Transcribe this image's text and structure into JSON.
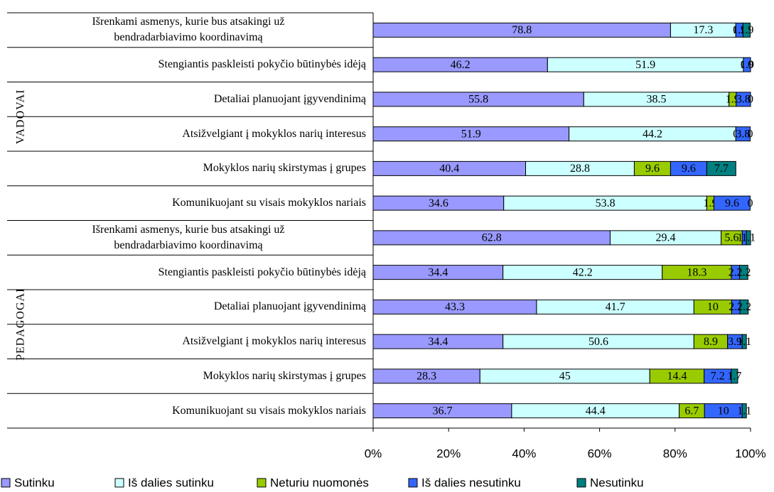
{
  "chart_data": {
    "type": "stacked_barh",
    "groups": [
      "VADOVAI",
      "PEDAGOGAI"
    ],
    "categories": [
      "Išrenkami asmenys, kurie bus atsakingi už\nbendradarbiavimo koordinavimą",
      "Stengiantis paskleisti pokyčio būtinybės idėją",
      "Detaliai planuojant įgyvendinimą",
      "Atsižvelgiant į mokyklos narių interesus",
      "Mokyklos narių skirstymas į grupes",
      "Komunikuojant su visais mokyklos nariais",
      "Išrenkami asmenys, kurie bus atsakingi už\nbendradarbiavimo koordinavimą",
      "Stengiantis paskleisti pokyčio būtinybės idėją",
      "Detaliai planuojant įgyvendinimą",
      "Atsižvelgiant į mokyklos narių interesus",
      "Mokyklos narių skirstymas į grupes",
      "Komunikuojant su visais mokyklos nariais"
    ],
    "series": [
      {
        "name": "Sutinku",
        "color": "#9999ff",
        "values": [
          78.8,
          46.2,
          55.8,
          51.9,
          40.4,
          34.6,
          62.8,
          34.4,
          43.3,
          34.4,
          28.3,
          36.7
        ]
      },
      {
        "name": "Iš dalies sutinku",
        "color": "#ccffff",
        "values": [
          17.3,
          51.9,
          38.5,
          44.2,
          28.8,
          53.8,
          29.4,
          42.2,
          41.7,
          50.6,
          45,
          44.4
        ]
      },
      {
        "name": "Neturiu nuomonės",
        "color": "#99cc00",
        "values": [
          0,
          0,
          1.9,
          0,
          9.6,
          1.9,
          5.6,
          18.3,
          10,
          8.9,
          14.4,
          6.7
        ]
      },
      {
        "name": "Iš dalies nesutinku",
        "color": "#3366ff",
        "values": [
          1.9,
          1.9,
          3.8,
          3.8,
          9.6,
          9.6,
          1.1,
          2.2,
          2.2,
          3.9,
          7.2,
          10
        ]
      },
      {
        "name": "Nesutinku",
        "color": "#008080",
        "values": [
          1.9,
          0,
          0,
          0,
          7.7,
          0,
          1.1,
          2.2,
          2.2,
          1.1,
          1.7,
          1.1
        ]
      }
    ],
    "xlim": [
      0,
      100
    ],
    "xticks": [
      {
        "value": 0,
        "label": "0%"
      },
      {
        "value": 20,
        "label": "20%"
      },
      {
        "value": 40,
        "label": "40%"
      },
      {
        "value": 60,
        "label": "60%"
      },
      {
        "value": 80,
        "label": "80%"
      },
      {
        "value": 100,
        "label": "100%"
      }
    ],
    "legend": "bottom"
  }
}
